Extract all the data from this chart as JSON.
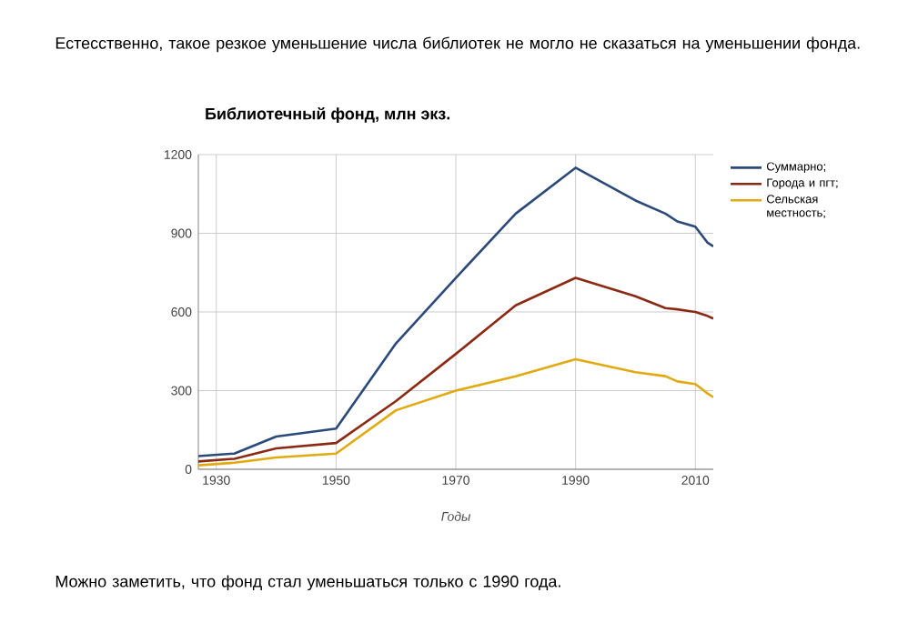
{
  "chart_data": {
    "type": "line",
    "title": "Библиотечный фонд, млн экз.",
    "xlabel": "Годы",
    "annotations": [
      "Естесственно, такое резкое уменьшение числа библиотек не могло не сказаться на уменьшении фонда.",
      "Можно заметить, что фонд стал уменьшаться только с 1990 года."
    ],
    "x": [
      1927,
      1933,
      1940,
      1950,
      1960,
      1970,
      1980,
      1990,
      2000,
      2005,
      2007,
      2010,
      2012,
      2013
    ],
    "series": [
      {
        "name": "Суммарно;",
        "color": "#2b4a7a",
        "values": [
          50,
          60,
          125,
          155,
          480,
          730,
          975,
          1150,
          1025,
          975,
          945,
          925,
          865,
          850
        ]
      },
      {
        "name": "Города и пгт;",
        "color": "#8b2a14",
        "values": [
          30,
          40,
          80,
          100,
          260,
          440,
          625,
          730,
          660,
          615,
          610,
          600,
          585,
          575
        ]
      },
      {
        "name": "Сельская местность;",
        "color": "#e0aa10",
        "values": [
          15,
          25,
          45,
          60,
          225,
          300,
          355,
          420,
          370,
          355,
          335,
          325,
          290,
          275
        ]
      }
    ],
    "xlim": [
      1927,
      2013
    ],
    "ylim": [
      0,
      1200
    ],
    "xticks": [
      1930,
      1950,
      1970,
      1990,
      2010
    ],
    "yticks": [
      0,
      300,
      600,
      900,
      1200
    ],
    "grid": true,
    "legend": "right",
    "marker": "none",
    "line_style": "solid"
  }
}
